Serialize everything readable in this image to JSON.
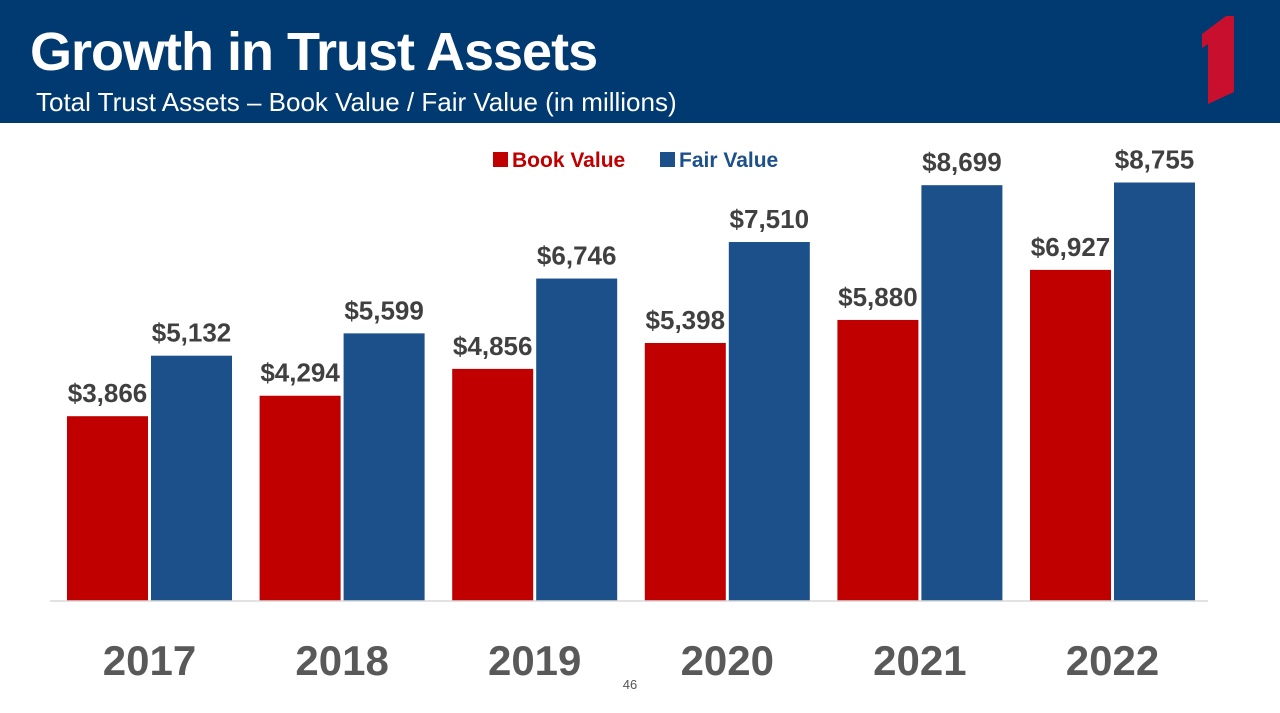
{
  "header": {
    "title": "Growth in Trust Assets",
    "subtitle": "Total Trust Assets – Book Value / Fair Value (in millions)"
  },
  "logo": {
    "icon": "numeral-one-logo-icon",
    "color": "#c8102e"
  },
  "page_number": "46",
  "colors": {
    "header_bg": "#003a70",
    "book_value": "#c00000",
    "fair_value": "#1b508a"
  },
  "chart_data": {
    "type": "bar",
    "title": "",
    "xlabel": "",
    "ylabel": "",
    "ylim": [
      0,
      10000
    ],
    "grid": false,
    "legend_position": "top-center",
    "categories": [
      "2017",
      "2018",
      "2019",
      "2020",
      "2021",
      "2022"
    ],
    "series": [
      {
        "name": "Book Value",
        "color": "#c00000",
        "values": [
          3866,
          4294,
          4856,
          5398,
          5880,
          6927
        ],
        "labels": [
          "$3,866",
          "$4,294",
          "$4,856",
          "$5,398",
          "$5,880",
          "$6,927"
        ]
      },
      {
        "name": "Fair Value",
        "color": "#1b508a",
        "values": [
          5132,
          5599,
          6746,
          7510,
          8699,
          8755
        ],
        "labels": [
          "$5,132",
          "$5,599",
          "$6,746",
          "$7,510",
          "$8,699",
          "$8,755"
        ]
      }
    ]
  }
}
